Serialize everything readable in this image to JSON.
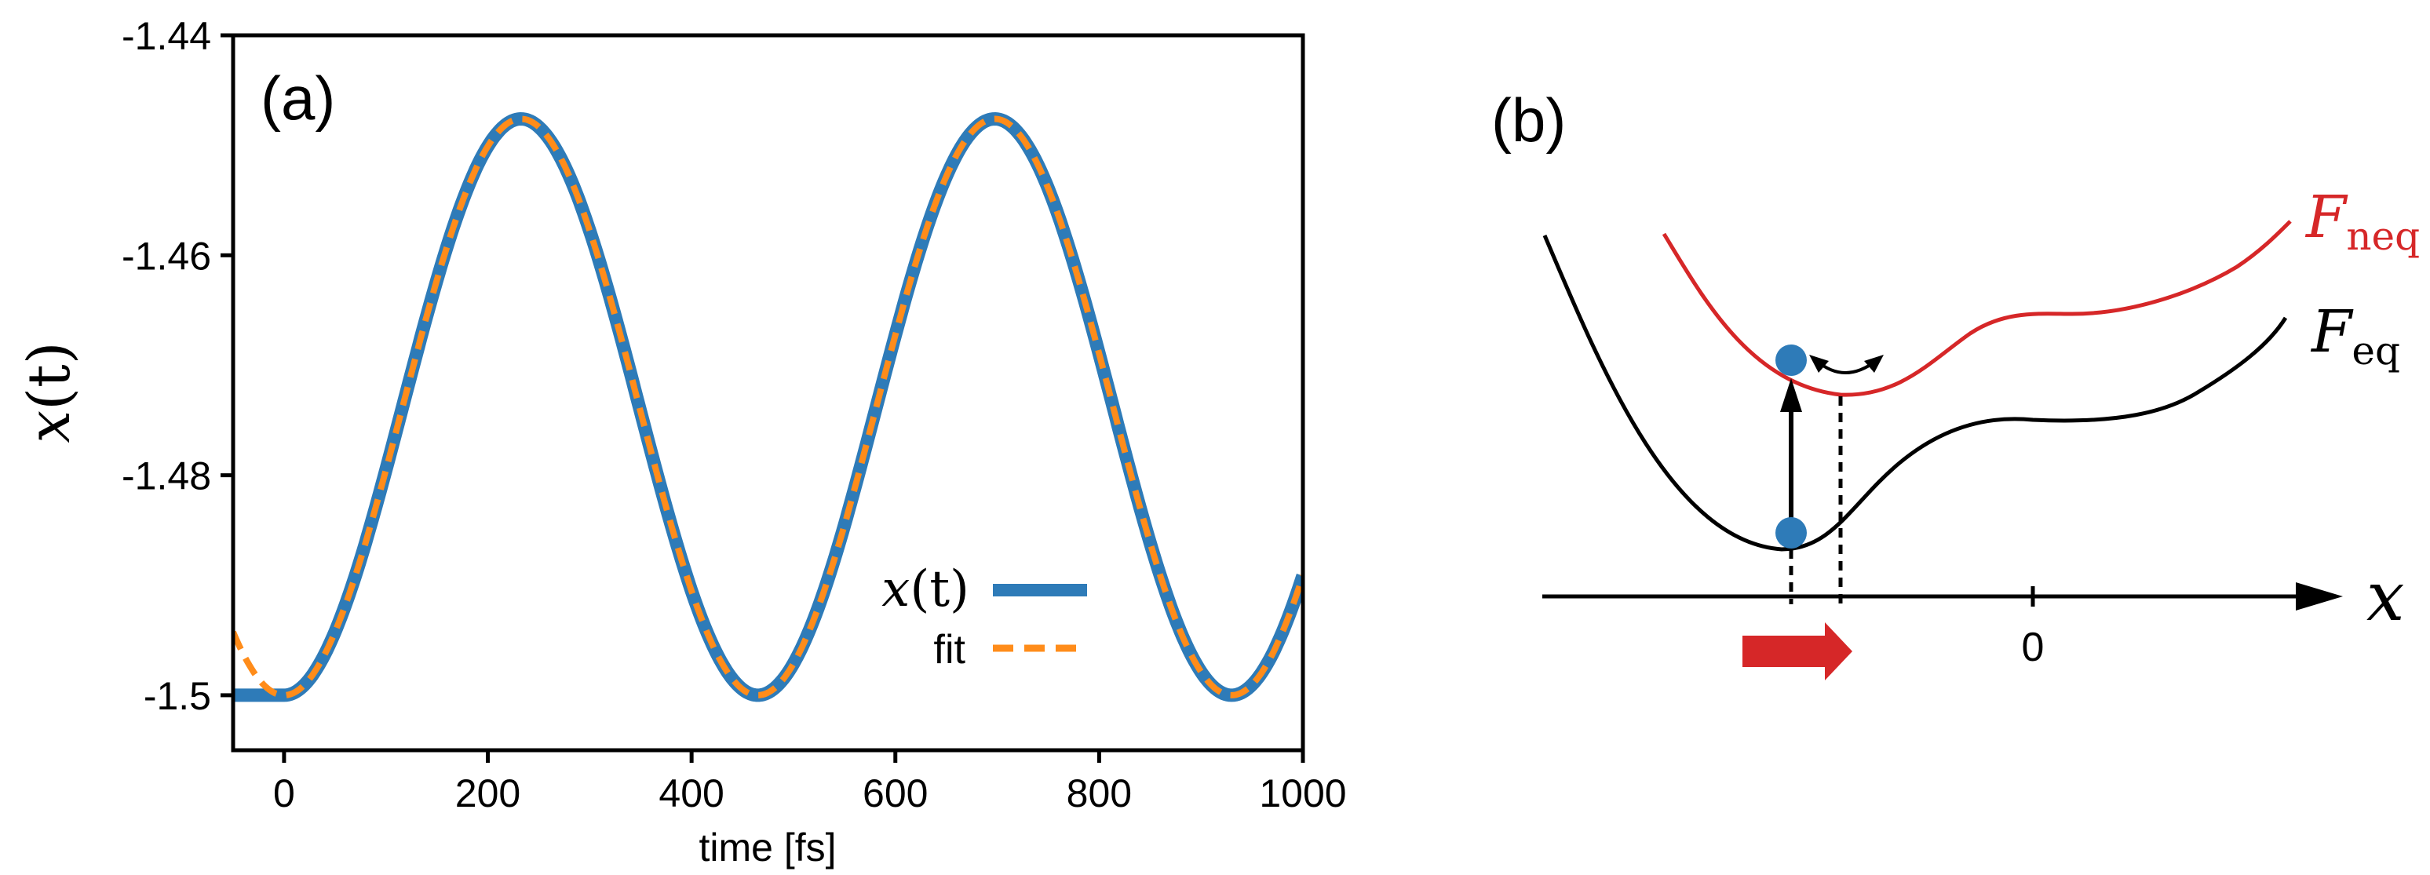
{
  "colors": {
    "series_x": "#2e7bb8",
    "series_fit": "#ff8c1a",
    "f_neq": "#d62728",
    "f_eq": "#000000",
    "particle": "#2e7bb8",
    "shift_arrow": "#d62728"
  },
  "chart_data": [
    {
      "panel": "(a)",
      "type": "line",
      "xlabel": "time [fs]",
      "ylabel_var": "x",
      "ylabel_arg": "(t)",
      "xlim": [
        -50,
        1000
      ],
      "ylim": [
        -1.505,
        -1.44
      ],
      "xticks": [
        0,
        200,
        400,
        600,
        800,
        1000
      ],
      "xtick_labels": [
        "0",
        "200",
        "400",
        "600",
        "800",
        "1000"
      ],
      "yticks": [
        -1.44,
        -1.46,
        -1.48,
        -1.5
      ],
      "ytick_labels": [
        "-1.44",
        "-1.46",
        "-1.48",
        "-1.5"
      ],
      "legend_position": "lower-right",
      "series": [
        {
          "name": "x(t)",
          "legend_var": "x",
          "legend_arg": "(t)",
          "style": "solid",
          "model": "x(t) = -1.5 for t < 0; x(t) = -1.4738 - 0.0262*cos(2*pi*t/465) for t >= 0",
          "x": [
            -50,
            0,
            116,
            232,
            348,
            465,
            581,
            697,
            813,
            930,
            1000
          ],
          "values": [
            -1.5,
            -1.5,
            -1.4738,
            -1.4476,
            -1.4738,
            -1.5,
            -1.4738,
            -1.4476,
            -1.4738,
            -1.5,
            -1.49
          ]
        },
        {
          "name": "fit",
          "legend_label": "fit",
          "style": "dashed",
          "model": "x(t) = -1.4738 - 0.0262*cos(2*pi*t/465)",
          "x": [
            -50,
            0,
            116,
            232,
            348,
            465,
            581,
            697,
            813,
            930,
            1000
          ],
          "values": [
            -1.494,
            -1.5,
            -1.4738,
            -1.4476,
            -1.4738,
            -1.5,
            -1.4738,
            -1.4476,
            -1.4738,
            -1.5,
            -1.49
          ]
        }
      ]
    },
    {
      "panel": "(b)",
      "type": "line",
      "description_axis": "x",
      "xtick_labels": [
        "0"
      ],
      "curves": [
        {
          "name": "F_neq",
          "main": "F",
          "sub": "neq"
        },
        {
          "name": "F_eq",
          "main": "F",
          "sub": "eq"
        }
      ]
    }
  ]
}
